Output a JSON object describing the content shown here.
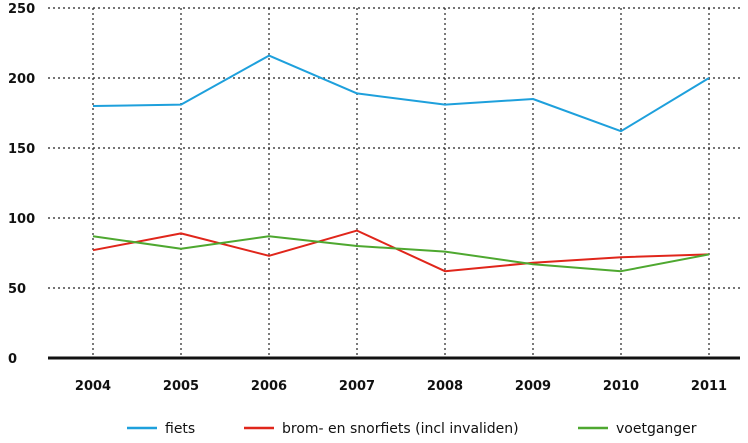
{
  "chart_data": {
    "type": "line",
    "title": "",
    "xlabel": "",
    "ylabel": "",
    "categories": [
      "2004",
      "2005",
      "2006",
      "2007",
      "2008",
      "2009",
      "2010",
      "2011"
    ],
    "ylim": [
      0,
      250
    ],
    "yticks": [
      0,
      50,
      100,
      150,
      200,
      250
    ],
    "grid": true,
    "legend_position": "bottom",
    "series": [
      {
        "name": "fiets",
        "color": "#1ea0dc",
        "values": [
          180,
          181,
          216,
          189,
          181,
          185,
          162,
          200
        ]
      },
      {
        "name": "brom- en snorfiets (incl invaliden)",
        "color": "#e0261b",
        "values": [
          77,
          89,
          73,
          91,
          62,
          68,
          72,
          74
        ]
      },
      {
        "name": "voetganger",
        "color": "#4ea830",
        "values": [
          87,
          78,
          87,
          80,
          76,
          67,
          62,
          74
        ]
      }
    ]
  }
}
